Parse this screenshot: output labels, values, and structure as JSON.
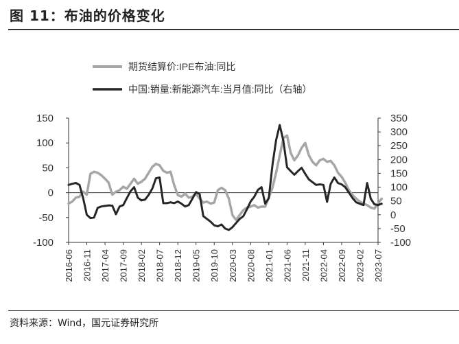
{
  "figure": {
    "title": "图 11：布油的价格变化",
    "source": "资料来源：Wind，国元证券研究所"
  },
  "chart_data": {
    "type": "line",
    "legend_position": "top-left",
    "grid": false,
    "x_ticks": [
      "2016-06",
      "2016-11",
      "2017-04",
      "2017-09",
      "2018-02",
      "2018-07",
      "2018-12",
      "2019-05",
      "2019-10",
      "2020-03",
      "2020-08",
      "2021-01",
      "2021-06",
      "2021-11",
      "2022-04",
      "2022-09",
      "2023-02",
      "2023-07"
    ],
    "y_left": {
      "ticks": [
        150,
        100,
        50,
        0,
        -50,
        -100
      ],
      "range": [
        -100,
        150
      ]
    },
    "y_right": {
      "ticks": [
        350,
        300,
        250,
        200,
        150,
        100,
        50,
        0,
        -50,
        -100
      ],
      "range": [
        -100,
        350
      ]
    },
    "series": [
      {
        "name": "期货结算价:IPE布油:同比",
        "axis": "left",
        "color": "#a6a6a6",
        "points": [
          [
            "2016-06",
            -22
          ],
          [
            "2016-07",
            -18
          ],
          [
            "2016-08",
            -10
          ],
          [
            "2016-09",
            -8
          ],
          [
            "2016-10",
            2
          ],
          [
            "2016-11",
            -4
          ],
          [
            "2016-12",
            38
          ],
          [
            "2017-01",
            42
          ],
          [
            "2017-02",
            40
          ],
          [
            "2017-03",
            35
          ],
          [
            "2017-04",
            28
          ],
          [
            "2017-05",
            20
          ],
          [
            "2017-06",
            -4
          ],
          [
            "2017-07",
            2
          ],
          [
            "2017-08",
            5
          ],
          [
            "2017-09",
            12
          ],
          [
            "2017-10",
            8
          ],
          [
            "2017-11",
            18
          ],
          [
            "2017-12",
            28
          ],
          [
            "2018-01",
            18
          ],
          [
            "2018-02",
            22
          ],
          [
            "2018-03",
            28
          ],
          [
            "2018-04",
            40
          ],
          [
            "2018-05",
            52
          ],
          [
            "2018-06",
            58
          ],
          [
            "2018-07",
            55
          ],
          [
            "2018-08",
            44
          ],
          [
            "2018-09",
            40
          ],
          [
            "2018-10",
            42
          ],
          [
            "2018-11",
            15
          ],
          [
            "2018-12",
            -5
          ],
          [
            "2019-01",
            -8
          ],
          [
            "2019-02",
            -2
          ],
          [
            "2019-03",
            -10
          ],
          [
            "2019-04",
            -8
          ],
          [
            "2019-05",
            -2
          ],
          [
            "2019-06",
            -12
          ],
          [
            "2019-07",
            -20
          ],
          [
            "2019-08",
            -18
          ],
          [
            "2019-09",
            -22
          ],
          [
            "2019-10",
            -20
          ],
          [
            "2019-11",
            5
          ],
          [
            "2019-12",
            10
          ],
          [
            "2020-01",
            5
          ],
          [
            "2020-02",
            -12
          ],
          [
            "2020-03",
            -45
          ],
          [
            "2020-04",
            -55
          ],
          [
            "2020-05",
            -45
          ],
          [
            "2020-06",
            -35
          ],
          [
            "2020-07",
            -30
          ],
          [
            "2020-08",
            -28
          ],
          [
            "2020-09",
            -25
          ],
          [
            "2020-10",
            -30
          ],
          [
            "2020-11",
            -28
          ],
          [
            "2020-12",
            -28
          ],
          [
            "2021-01",
            -10
          ],
          [
            "2021-02",
            10
          ],
          [
            "2021-03",
            40
          ],
          [
            "2021-04",
            75
          ],
          [
            "2021-05",
            110
          ],
          [
            "2021-06",
            115
          ],
          [
            "2021-07",
            80
          ],
          [
            "2021-08",
            65
          ],
          [
            "2021-09",
            75
          ],
          [
            "2021-10",
            90
          ],
          [
            "2021-11",
            100
          ],
          [
            "2021-12",
            75
          ],
          [
            "2022-01",
            62
          ],
          [
            "2022-02",
            55
          ],
          [
            "2022-03",
            65
          ],
          [
            "2022-04",
            68
          ],
          [
            "2022-05",
            62
          ],
          [
            "2022-06",
            64
          ],
          [
            "2022-07",
            55
          ],
          [
            "2022-08",
            40
          ],
          [
            "2022-09",
            32
          ],
          [
            "2022-10",
            20
          ],
          [
            "2022-11",
            5
          ],
          [
            "2022-12",
            -5
          ],
          [
            "2023-01",
            -12
          ],
          [
            "2023-02",
            -18
          ],
          [
            "2023-03",
            -22
          ],
          [
            "2023-04",
            -25
          ],
          [
            "2023-05",
            -30
          ],
          [
            "2023-06",
            -32
          ],
          [
            "2023-07",
            -22
          ],
          [
            "2023-08",
            -12
          ]
        ]
      },
      {
        "name": "中国:销量:新能源汽车:当月值:同比（右轴）",
        "axis": "right",
        "color": "#262626",
        "points": [
          [
            "2016-06",
            108
          ],
          [
            "2016-07",
            112
          ],
          [
            "2016-08",
            115
          ],
          [
            "2016-09",
            108
          ],
          [
            "2016-10",
            60
          ],
          [
            "2016-11",
            0
          ],
          [
            "2016-12",
            -12
          ],
          [
            "2017-01",
            -10
          ],
          [
            "2017-02",
            25
          ],
          [
            "2017-03",
            30
          ],
          [
            "2017-04",
            32
          ],
          [
            "2017-05",
            34
          ],
          [
            "2017-06",
            33
          ],
          [
            "2017-07",
            2
          ],
          [
            "2017-08",
            30
          ],
          [
            "2017-09",
            35
          ],
          [
            "2017-10",
            60
          ],
          [
            "2017-11",
            85
          ],
          [
            "2017-12",
            100
          ],
          [
            "2018-01",
            62
          ],
          [
            "2018-02",
            52
          ],
          [
            "2018-03",
            55
          ],
          [
            "2018-04",
            72
          ],
          [
            "2018-05",
            95
          ],
          [
            "2018-06",
            132
          ],
          [
            "2018-07",
            135
          ],
          [
            "2018-08",
            42
          ],
          [
            "2018-09",
            42
          ],
          [
            "2018-10",
            45
          ],
          [
            "2018-11",
            42
          ],
          [
            "2018-12",
            48
          ],
          [
            "2019-01",
            40
          ],
          [
            "2019-02",
            30
          ],
          [
            "2019-03",
            35
          ],
          [
            "2019-04",
            58
          ],
          [
            "2019-05",
            82
          ],
          [
            "2019-06",
            75
          ],
          [
            "2019-07",
            -5
          ],
          [
            "2019-08",
            -15
          ],
          [
            "2019-09",
            -25
          ],
          [
            "2019-10",
            -38
          ],
          [
            "2019-11",
            -42
          ],
          [
            "2019-12",
            -35
          ],
          [
            "2020-01",
            -50
          ],
          [
            "2020-02",
            -55
          ],
          [
            "2020-03",
            -45
          ],
          [
            "2020-04",
            -30
          ],
          [
            "2020-05",
            -15
          ],
          [
            "2020-06",
            -5
          ],
          [
            "2020-07",
            20
          ],
          [
            "2020-08",
            48
          ],
          [
            "2020-09",
            65
          ],
          [
            "2020-10",
            90
          ],
          [
            "2020-11",
            100
          ],
          [
            "2020-12",
            40
          ],
          [
            "2021-01",
            60
          ],
          [
            "2021-02",
            180
          ],
          [
            "2021-03",
            270
          ],
          [
            "2021-04",
            325
          ],
          [
            "2021-05",
            268
          ],
          [
            "2021-06",
            172
          ],
          [
            "2021-07",
            158
          ],
          [
            "2021-08",
            145
          ],
          [
            "2021-09",
            158
          ],
          [
            "2021-10",
            170
          ],
          [
            "2021-11",
            148
          ],
          [
            "2021-12",
            128
          ],
          [
            "2022-01",
            118
          ],
          [
            "2022-02",
            108
          ],
          [
            "2022-03",
            110
          ],
          [
            "2022-04",
            108
          ],
          [
            "2022-05",
            47
          ],
          [
            "2022-06",
            112
          ],
          [
            "2022-07",
            135
          ],
          [
            "2022-08",
            115
          ],
          [
            "2022-09",
            110
          ],
          [
            "2022-10",
            100
          ],
          [
            "2022-11",
            80
          ],
          [
            "2022-12",
            60
          ],
          [
            "2023-01",
            45
          ],
          [
            "2023-02",
            40
          ],
          [
            "2023-03",
            35
          ],
          [
            "2023-04",
            115
          ],
          [
            "2023-05",
            58
          ],
          [
            "2023-06",
            38
          ],
          [
            "2023-07",
            35
          ],
          [
            "2023-08",
            40
          ]
        ]
      }
    ]
  }
}
